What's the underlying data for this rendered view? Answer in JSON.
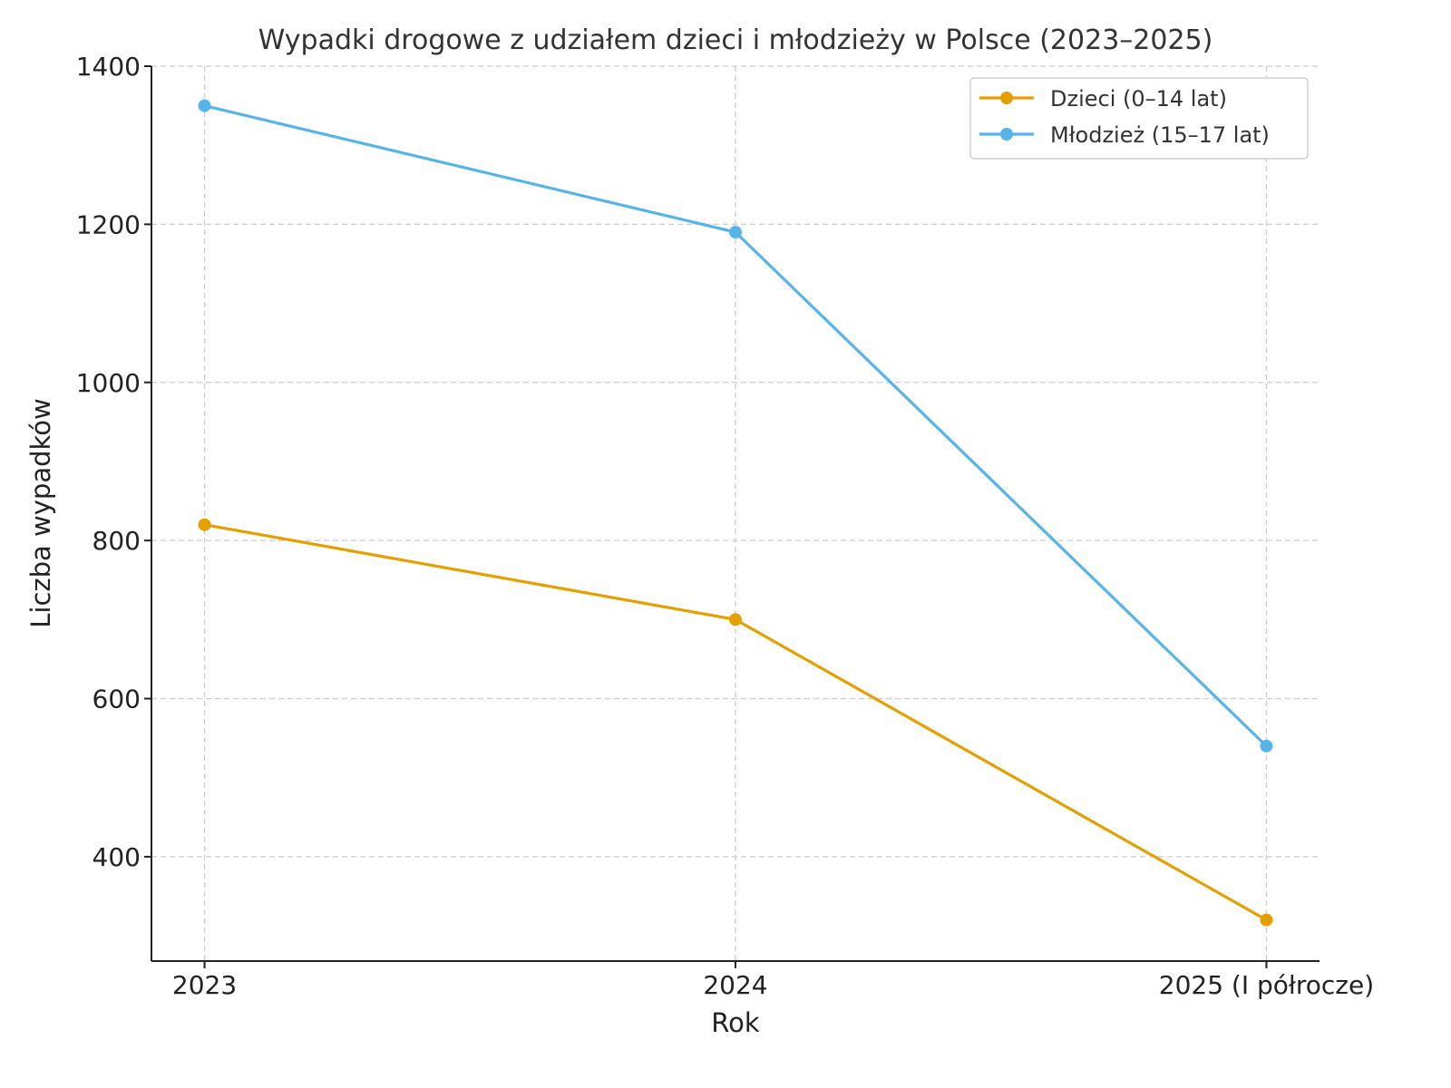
{
  "chart_data": {
    "type": "line",
    "title": "Wypadki drogowe z udziałem dzieci i młodzieży w Polsce (2023–2025)",
    "xlabel": "Rok",
    "ylabel": "Liczba wypadków",
    "categories": [
      "2023",
      "2024",
      "2025 (I półrocze)"
    ],
    "series": [
      {
        "name": "Dzieci (0–14 lat)",
        "color": "#E69F00",
        "values": [
          820,
          700,
          320
        ]
      },
      {
        "name": "Młodzież (15–17 lat)",
        "color": "#56B4E9",
        "values": [
          1350,
          1190,
          540
        ]
      }
    ],
    "yticks": [
      "400",
      "600",
      "800",
      "1000",
      "1200",
      "1400"
    ],
    "ylim": [
      268,
      1400
    ],
    "grid": true,
    "legend_position": "top-right"
  }
}
